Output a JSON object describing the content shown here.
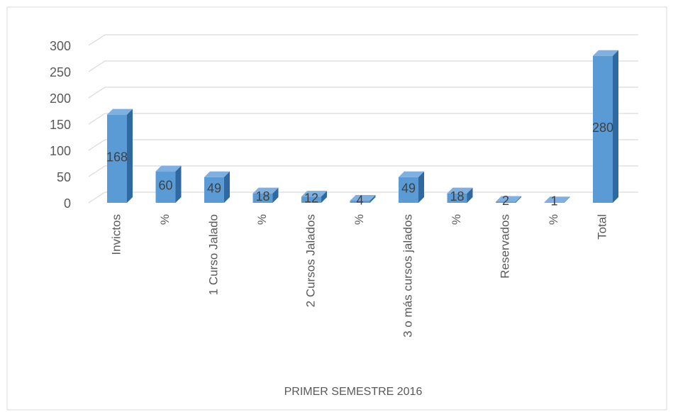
{
  "chart_data": {
    "type": "bar3d",
    "x_label": "PRIMER SEMESTRE 2016",
    "categories": [
      "Invictos",
      "%",
      "1 Curso Jalado",
      "%",
      "2 Cursos Jalados",
      "%",
      "3 o más cursos jalados",
      "%",
      "Reservados",
      "%",
      "Total"
    ],
    "values": [
      168,
      60,
      49,
      18,
      12,
      4,
      49,
      18,
      2,
      1,
      280
    ],
    "color": "#5b9bd5",
    "ylim": [
      0,
      300
    ],
    "yticks": [
      0,
      50,
      100,
      150,
      200,
      250,
      300
    ],
    "grid": true
  }
}
